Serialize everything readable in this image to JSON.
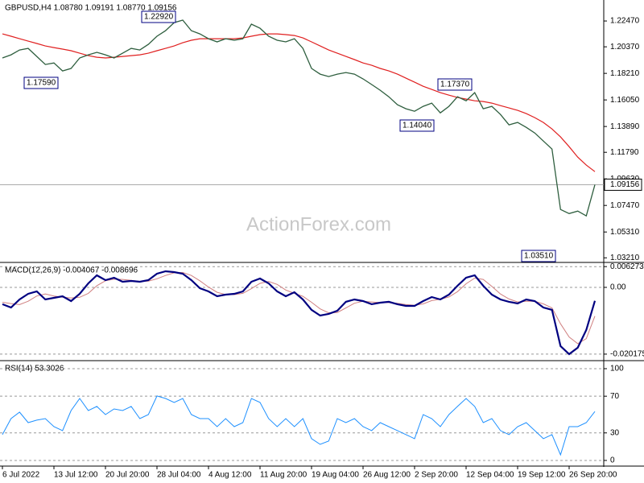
{
  "watermark": "ActionForex.com",
  "chart_data": [
    {
      "type": "ohlc-line",
      "title": "GBPUSD,H4  1.08780 1.09191 1.08770 1.09156",
      "categories": [
        "6 Jul 2022",
        null,
        null,
        null,
        null,
        null,
        "13 Jul 12:00",
        null,
        null,
        null,
        null,
        null,
        "20 Jul 20:00",
        null,
        null,
        null,
        null,
        null,
        "28 Jul 04:00",
        null,
        null,
        null,
        null,
        null,
        "4 Aug 12:00",
        null,
        null,
        null,
        null,
        null,
        "11 Aug 20:00",
        null,
        null,
        null,
        null,
        null,
        "19 Aug 04:00",
        null,
        null,
        null,
        null,
        null,
        "26 Aug 12:00",
        null,
        null,
        null,
        null,
        null,
        "2 Sep 20:00",
        null,
        null,
        null,
        null,
        null,
        "12 Sep 04:00",
        null,
        null,
        null,
        null,
        null,
        "19 Sep 12:00",
        null,
        null,
        null,
        null,
        null,
        "26 Sep 20:00",
        null,
        null,
        null
      ],
      "series": [
        {
          "name": "Close",
          "color": "#2e5e3e",
          "values": [
            1.1946,
            1.1972,
            1.2011,
            1.2024,
            1.1959,
            1.1893,
            1.1906,
            1.1841,
            1.1861,
            1.1946,
            1.1972,
            1.1992,
            1.1972,
            1.1946,
            1.1985,
            1.2024,
            1.2011,
            1.2057,
            1.2123,
            1.2168,
            1.2234,
            1.2254,
            1.2168,
            1.2142,
            1.2103,
            1.2077,
            1.2103,
            1.209,
            1.2103,
            1.2221,
            1.2188,
            1.2123,
            1.209,
            1.2077,
            1.2103,
            1.2024,
            1.1861,
            1.1815,
            1.1795,
            1.1815,
            1.1828,
            1.1815,
            1.1776,
            1.173,
            1.1684,
            1.1631,
            1.1566,
            1.1533,
            1.1513,
            1.1553,
            1.1579,
            1.15,
            1.1553,
            1.1631,
            1.1598,
            1.1664,
            1.1533,
            1.1553,
            1.1487,
            1.1402,
            1.1422,
            1.1382,
            1.1336,
            1.1271,
            1.1205,
            1.0714,
            1.0681,
            1.0701,
            1.0662,
            1.09156
          ]
        },
        {
          "name": "MA",
          "color": "#e02020",
          "values": [
            1.2142,
            1.2123,
            1.2103,
            1.2083,
            1.2064,
            1.2044,
            1.2031,
            1.2018,
            1.2005,
            1.1985,
            1.1965,
            1.1952,
            1.1946,
            1.1952,
            1.1959,
            1.1965,
            1.1972,
            1.1985,
            1.2005,
            1.2024,
            1.2044,
            1.207,
            1.209,
            1.2103,
            1.2103,
            1.2103,
            1.2103,
            1.2103,
            1.2109,
            1.2123,
            1.2136,
            1.2142,
            1.2142,
            1.2136,
            1.2129,
            1.2109,
            1.2077,
            1.2044,
            1.2011,
            1.1985,
            1.1959,
            1.1933,
            1.1906,
            1.1887,
            1.1861,
            1.1841,
            1.1815,
            1.1782,
            1.1749,
            1.1716,
            1.169,
            1.1664,
            1.1644,
            1.1625,
            1.1612,
            1.1598,
            1.1592,
            1.1579,
            1.1559,
            1.154,
            1.152,
            1.1494,
            1.1461,
            1.1422,
            1.1369,
            1.1304,
            1.1225,
            1.114,
            1.1075,
            1.1022
          ]
        }
      ],
      "last": 1.09156,
      "annotations": [
        "1.22920",
        "1.17590",
        "1.17370",
        "1.14040",
        "1.03510"
      ],
      "ylim": [
        1.2398,
        1.029
      ],
      "yticks": [
        {
          "value": 1.2247,
          "label": "1.22470"
        },
        {
          "value": 1.2037,
          "label": "1.20370"
        },
        {
          "value": 1.1821,
          "label": "1.18210"
        },
        {
          "value": 1.1605,
          "label": "1.16050"
        },
        {
          "value": 1.1389,
          "label": "1.13890"
        },
        {
          "value": 1.1179,
          "label": "1.11790"
        },
        {
          "value": 1.0963,
          "label": "1.09630"
        },
        {
          "value": 1.0747,
          "label": "1.07470"
        },
        {
          "value": 1.0531,
          "label": "1.05310"
        },
        {
          "value": 1.0321,
          "label": "1.03210"
        }
      ]
    },
    {
      "type": "line",
      "title": "MACD(12,26,9) -0.004067 -0.008696",
      "series": [
        {
          "name": "MACD",
          "color": "#000080",
          "values": [
            -0.0051,
            -0.00608,
            -0.00365,
            -0.00194,
            -0.00122,
            -0.00365,
            -0.00316,
            -0.00267,
            -0.00413,
            -0.00194,
            0.00122,
            0.00365,
            0.00219,
            0.00292,
            0.0017,
            0.00194,
            0.0017,
            0.00219,
            0.00413,
            0.00486,
            0.00462,
            0.00413,
            0.00219,
            -0.00024,
            -0.00122,
            -0.00267,
            -0.00219,
            -0.00194,
            -0.00122,
            0.0017,
            0.00267,
            0.00122,
            -0.00122,
            -0.00267,
            -0.00146,
            -0.00365,
            -0.0068,
            -0.00851,
            -0.00802,
            -0.00705,
            -0.00437,
            -0.00365,
            -0.00413,
            -0.0051,
            -0.00462,
            -0.00437,
            -0.0051,
            -0.00559,
            -0.00559,
            -0.00413,
            -0.00292,
            -0.00365,
            -0.00219,
            0.00049,
            0.00292,
            0.00365,
            0.00049,
            -0.00219,
            -0.00365,
            -0.00437,
            -0.00486,
            -0.00365,
            -0.00413,
            -0.00608,
            -0.0068,
            -0.01774,
            -0.02017,
            -0.01823,
            -0.01288,
            -0.004067
          ]
        },
        {
          "name": "Signal",
          "color": "#d08080",
          "values": [
            -0.0045,
            -0.0049,
            -0.0052,
            -0.0042,
            -0.0026,
            -0.002,
            -0.0026,
            -0.003,
            -0.0032,
            -0.003,
            -0.0018,
            0.0005,
            0.002,
            0.0025,
            0.0024,
            0.0021,
            0.0018,
            0.0019,
            0.0026,
            0.0036,
            0.0044,
            0.0045,
            0.0036,
            0.002,
            0.0001,
            -0.0015,
            -0.0022,
            -0.0022,
            -0.0018,
            -0.0004,
            0.0012,
            0.0018,
            0.0009,
            -0.0008,
            -0.0018,
            -0.0027,
            -0.0045,
            -0.0065,
            -0.0077,
            -0.0076,
            -0.0062,
            -0.0048,
            -0.0042,
            -0.0044,
            -0.0046,
            -0.0046,
            -0.0048,
            -0.0052,
            -0.0054,
            -0.005,
            -0.004,
            -0.0036,
            -0.0029,
            -0.0013,
            0.0011,
            0.0028,
            0.0024,
            0.0003,
            -0.002,
            -0.0035,
            -0.0044,
            -0.0042,
            -0.0042,
            -0.005,
            -0.0062,
            -0.011,
            -0.015,
            -0.017,
            -0.0155,
            -0.008696
          ]
        }
      ],
      "ylim": [
        0.00705,
        -0.0219
      ],
      "yticks": [
        0.006273,
        {
          "value": 0,
          "label": "0.00"
        },
        -0.020175
      ]
    },
    {
      "type": "line",
      "title": "RSI(14) 53.3026",
      "series": [
        {
          "name": "RSI",
          "color": "#1e90ff",
          "values": [
            28.1,
            45.6,
            52.6,
            41.2,
            43.9,
            45.6,
            36.8,
            32.5,
            54.4,
            67.5,
            54.4,
            58.8,
            50,
            56.1,
            54.4,
            58.8,
            45.6,
            50,
            70.2,
            67.5,
            63.2,
            67.5,
            50,
            45.6,
            45.6,
            36.8,
            45.6,
            36.8,
            41.2,
            67.5,
            63.2,
            45.6,
            36.8,
            45.6,
            36.8,
            45.6,
            23.7,
            17.5,
            21.1,
            45.6,
            41.2,
            45.6,
            36.8,
            32.5,
            41.2,
            36.8,
            32.5,
            28.1,
            23.7,
            50,
            45.6,
            36.8,
            50,
            58.8,
            67.5,
            58.8,
            41.2,
            45.6,
            32.5,
            28.1,
            36.8,
            41.2,
            32.5,
            23.7,
            28.1,
            6.1,
            36.8,
            36.8,
            41.2,
            53.3026
          ]
        }
      ],
      "ylim": [
        107,
        -5.3
      ],
      "yticks": [
        100,
        70,
        30,
        0
      ]
    }
  ]
}
